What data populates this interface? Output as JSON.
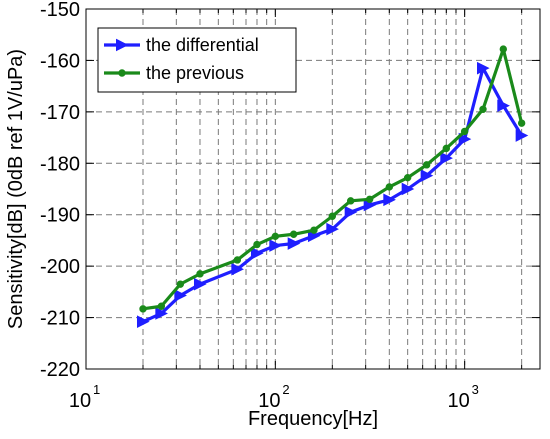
{
  "chart_data": {
    "type": "line",
    "xscale": "log",
    "xlim": [
      10,
      2500
    ],
    "ylim": [
      -220,
      -150
    ],
    "xlabel": "Frequency[Hz]",
    "ylabel": "Sensitivity[dB] (0dB ref 1V/uPa)",
    "grid": true,
    "legend_position": "top-left",
    "xticks": [
      {
        "base": "10",
        "exp": "1",
        "value": 10
      },
      {
        "base": "10",
        "exp": "2",
        "value": 100
      },
      {
        "base": "10",
        "exp": "3",
        "value": 1000
      }
    ],
    "yticks": [
      "-150",
      "-160",
      "-170",
      "-180",
      "-190",
      "-200",
      "-210",
      "-220"
    ],
    "series": [
      {
        "name": "the differential",
        "color": "#1f1fff",
        "marker": "triangle-right",
        "points": [
          [
            20,
            -210.8
          ],
          [
            25,
            -209.2
          ],
          [
            31.5,
            -205.7
          ],
          [
            40,
            -203.5
          ],
          [
            63,
            -200.6
          ],
          [
            80,
            -197.5
          ],
          [
            100,
            -196.0
          ],
          [
            125,
            -195.6
          ],
          [
            160,
            -194.1
          ],
          [
            200,
            -192.8
          ],
          [
            250,
            -189.5
          ],
          [
            315,
            -188.1
          ],
          [
            400,
            -187.1
          ],
          [
            500,
            -185.0
          ],
          [
            630,
            -182.4
          ],
          [
            800,
            -179.0
          ],
          [
            1000,
            -175.3
          ],
          [
            1250,
            -161.5
          ],
          [
            1600,
            -168.8
          ],
          [
            2000,
            -174.6
          ]
        ]
      },
      {
        "name": "the previous",
        "color": "#1a8a1a",
        "marker": "dot",
        "points": [
          [
            20,
            -208.3
          ],
          [
            25,
            -207.8
          ],
          [
            31.5,
            -203.5
          ],
          [
            40,
            -201.5
          ],
          [
            63,
            -198.8
          ],
          [
            80,
            -195.8
          ],
          [
            100,
            -194.2
          ],
          [
            125,
            -193.8
          ],
          [
            160,
            -193.0
          ],
          [
            200,
            -190.3
          ],
          [
            250,
            -187.3
          ],
          [
            315,
            -187.0
          ],
          [
            400,
            -184.6
          ],
          [
            500,
            -182.8
          ],
          [
            630,
            -180.3
          ],
          [
            800,
            -177.1
          ],
          [
            1000,
            -173.8
          ],
          [
            1250,
            -169.5
          ],
          [
            1600,
            -157.8
          ],
          [
            2000,
            -172.2
          ]
        ]
      }
    ]
  }
}
